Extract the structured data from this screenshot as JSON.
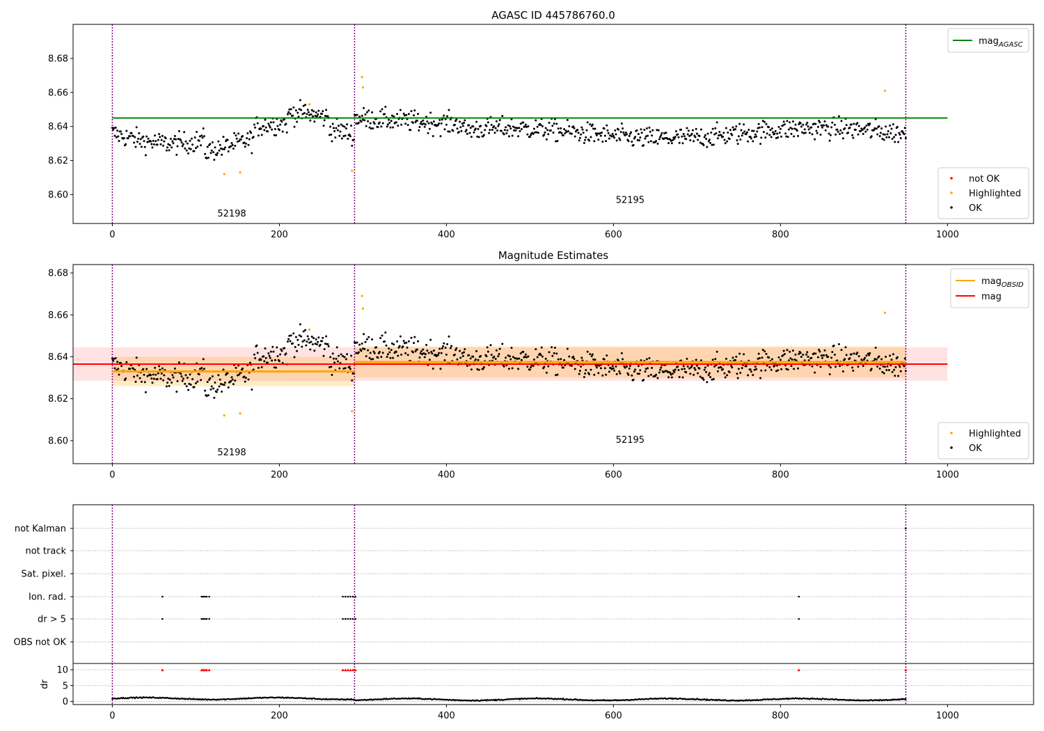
{
  "figure": {
    "panels": [
      {
        "id": "agasc",
        "title": "AGASC ID 445786760.0",
        "y_ticks": [
          8.6,
          8.62,
          8.64,
          8.66,
          8.68
        ],
        "x_ticks": [
          0,
          200,
          400,
          600,
          800,
          1000
        ],
        "ylim": [
          8.583,
          8.7
        ],
        "xlim": [
          -47,
          1103
        ],
        "legend_upper": [
          {
            "label": "mag",
            "sub": "AGASC",
            "color": "#008000",
            "kind": "line"
          }
        ],
        "legend_lower": [
          {
            "label": "not OK",
            "color": "#ff0000",
            "kind": "dot"
          },
          {
            "label": "Highlighted",
            "color": "#ffa500",
            "kind": "dot"
          },
          {
            "label": "OK",
            "color": "#000000",
            "kind": "dot"
          }
        ],
        "obsid_labels": [
          {
            "text": "52198",
            "x": 143,
            "y": 8.587
          },
          {
            "text": "52195",
            "x": 620,
            "y": 8.595
          }
        ]
      },
      {
        "id": "estimates",
        "title": "Magnitude Estimates",
        "y_ticks": [
          8.6,
          8.62,
          8.64,
          8.66,
          8.68
        ],
        "x_ticks": [
          0,
          200,
          400,
          600,
          800,
          1000
        ],
        "ylim": [
          8.589,
          8.684
        ],
        "xlim": [
          -47,
          1103
        ],
        "legend_upper": [
          {
            "label": "mag",
            "sub": "OBSID",
            "color": "#ffa500",
            "kind": "line"
          },
          {
            "label": "mag",
            "sub": "",
            "color": "#ff0000",
            "kind": "line"
          }
        ],
        "legend_lower": [
          {
            "label": "Highlighted",
            "color": "#ffa500",
            "kind": "dot"
          },
          {
            "label": "OK",
            "color": "#000000",
            "kind": "dot"
          }
        ],
        "obsid_labels": [
          {
            "text": "52198",
            "x": 143,
            "y": 8.593
          },
          {
            "text": "52195",
            "x": 620,
            "y": 8.599
          }
        ]
      },
      {
        "id": "flags",
        "categories": [
          "not Kalman",
          "not track",
          "Sat. pixel.",
          "Ion. rad.",
          "dr > 5",
          "OBS not OK"
        ],
        "x_ticks": [
          0,
          200,
          400,
          600,
          800,
          1000
        ],
        "dr_ylabel": "dr",
        "dr_ticks": [
          0,
          5,
          10
        ]
      }
    ]
  },
  "chart_data": [
    {
      "type": "scatter",
      "title": "AGASC ID 445786760.0",
      "xlim": [
        -47,
        1103
      ],
      "ylim": [
        8.583,
        8.7
      ],
      "series": [
        {
          "name": "mag_AGASC",
          "kind": "hline",
          "y": 8.645,
          "x_range": [
            0,
            1000
          ]
        },
        {
          "name": "OK",
          "n_points": 951,
          "x_range": [
            0,
            950
          ]
        },
        {
          "name": "Highlighted",
          "points": [
            [
              134,
              8.612
            ],
            [
              153,
              8.613
            ],
            [
              236,
              8.653
            ],
            [
              287,
              8.614
            ],
            [
              299,
              8.669
            ],
            [
              300,
              8.663
            ],
            [
              925,
              8.661
            ]
          ]
        },
        {
          "name": "not OK",
          "points": []
        }
      ],
      "obsid_segments": [
        {
          "obsid": "52198",
          "x_range": [
            0,
            290
          ]
        },
        {
          "obsid": "52195",
          "x_range": [
            290,
            950
          ]
        }
      ]
    },
    {
      "type": "scatter",
      "title": "Magnitude Estimates",
      "xlim": [
        -47,
        1103
      ],
      "ylim": [
        8.589,
        8.684
      ],
      "series": [
        {
          "name": "mag_OBSID",
          "segments": [
            {
              "x_range": [
                0,
                290
              ],
              "y": 8.633,
              "band": [
                8.626,
                8.64
              ]
            },
            {
              "x_range": [
                290,
                950
              ],
              "y": 8.6375,
              "band": [
                8.63,
                8.645
              ]
            }
          ]
        },
        {
          "name": "mag",
          "y": 8.6365,
          "x_range": [
            -47,
            1000
          ],
          "band": [
            8.6285,
            8.6445
          ]
        },
        {
          "name": "Highlighted",
          "points": [
            [
              134,
              8.612
            ],
            [
              153,
              8.613
            ],
            [
              236,
              8.653
            ],
            [
              287,
              8.614
            ],
            [
              299,
              8.669
            ],
            [
              300,
              8.663
            ],
            [
              925,
              8.661
            ]
          ]
        },
        {
          "name": "OK",
          "n_points": 951,
          "x_range": [
            0,
            950
          ]
        }
      ]
    },
    {
      "type": "scatter",
      "categories": [
        "not Kalman",
        "not track",
        "Sat. pixel.",
        "Ion. rad.",
        "dr > 5",
        "OBS not OK"
      ],
      "flag_points": {
        "Ion. rad.": [
          60,
          107,
          109,
          111,
          113,
          116,
          276,
          279,
          282,
          285,
          288,
          291,
          822
        ],
        "dr > 5": [
          60,
          107,
          109,
          111,
          113,
          116,
          276,
          279,
          282,
          285,
          288,
          291,
          822
        ],
        "not Kalman": [
          950
        ]
      },
      "dr": {
        "ylim": [
          -1,
          12
        ],
        "typical": 0.6,
        "clipped_at_10": [
          60,
          107,
          109,
          111,
          113,
          116,
          276,
          279,
          282,
          285,
          288,
          291,
          822,
          950
        ]
      }
    }
  ],
  "colors": {
    "agasc_line": "#008000",
    "obsid_line": "#ffa500",
    "mag_line": "#ff0000",
    "obs_boundary": "#800080",
    "highlight": "#ffa500",
    "notok": "#ff0000"
  },
  "obs_boundaries": [
    0,
    290,
    950
  ]
}
